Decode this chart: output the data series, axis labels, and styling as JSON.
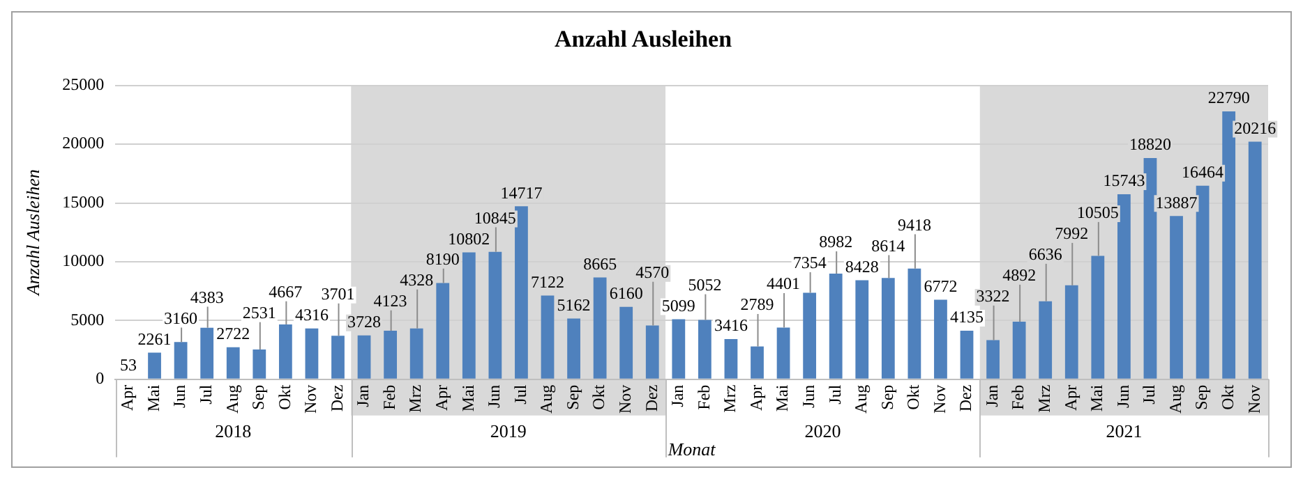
{
  "chart_data": {
    "type": "bar",
    "title": "Anzahl Ausleihen",
    "xlabel": "Monat",
    "ylabel": "Anzahl Ausleihen",
    "x": [
      "2018-04",
      "2018-05",
      "2018-06",
      "2018-07",
      "2018-08",
      "2018-09",
      "2018-10",
      "2018-11",
      "2018-12",
      "2019-01",
      "2019-02",
      "2019-03",
      "2019-04",
      "2019-05",
      "2019-06",
      "2019-07",
      "2019-08",
      "2019-09",
      "2019-10",
      "2019-11",
      "2019-12",
      "2020-01",
      "2020-02",
      "2020-03",
      "2020-04",
      "2020-05",
      "2020-06",
      "2020-07",
      "2020-08",
      "2020-09",
      "2020-10",
      "2020-11",
      "2020-12",
      "2021-01",
      "2021-02",
      "2021-03",
      "2021-04",
      "2021-05",
      "2021-06",
      "2021-07",
      "2021-08",
      "2021-09",
      "2021-10",
      "2021-11"
    ],
    "xticks": [
      {
        "value": "2018-04",
        "label": "Apr"
      },
      {
        "value": "2018-05",
        "label": "Mai"
      },
      {
        "value": "2018-06",
        "label": "Jun"
      },
      {
        "value": "2018-07",
        "label": "Jul"
      },
      {
        "value": "2018-08",
        "label": "Aug"
      },
      {
        "value": "2018-09",
        "label": "Sep"
      },
      {
        "value": "2018-10",
        "label": "Okt"
      },
      {
        "value": "2018-11",
        "label": "Nov"
      },
      {
        "value": "2018-12",
        "label": "Dez"
      },
      {
        "value": "2019-01",
        "label": "Jan"
      },
      {
        "value": "2019-02",
        "label": "Feb"
      },
      {
        "value": "2019-03",
        "label": "Mrz"
      },
      {
        "value": "2019-04",
        "label": "Apr"
      },
      {
        "value": "2019-05",
        "label": "Mai"
      },
      {
        "value": "2019-06",
        "label": "Jun"
      },
      {
        "value": "2019-07",
        "label": "Jul"
      },
      {
        "value": "2019-08",
        "label": "Aug"
      },
      {
        "value": "2019-09",
        "label": "Sep"
      },
      {
        "value": "2019-10",
        "label": "Okt"
      },
      {
        "value": "2019-11",
        "label": "Nov"
      },
      {
        "value": "2019-12",
        "label": "Dez"
      },
      {
        "value": "2020-01",
        "label": "Jan"
      },
      {
        "value": "2020-02",
        "label": "Feb"
      },
      {
        "value": "2020-03",
        "label": "Mrz"
      },
      {
        "value": "2020-04",
        "label": "Apr"
      },
      {
        "value": "2020-05",
        "label": "Mai"
      },
      {
        "value": "2020-06",
        "label": "Jun"
      },
      {
        "value": "2020-07",
        "label": "Jul"
      },
      {
        "value": "2020-08",
        "label": "Aug"
      },
      {
        "value": "2020-09",
        "label": "Sep"
      },
      {
        "value": "2020-10",
        "label": "Okt"
      },
      {
        "value": "2020-11",
        "label": "Nov"
      },
      {
        "value": "2020-12",
        "label": "Dez"
      },
      {
        "value": "2021-01",
        "label": "Jan"
      },
      {
        "value": "2021-02",
        "label": "Feb"
      },
      {
        "value": "2021-03",
        "label": "Mrz"
      },
      {
        "value": "2021-04",
        "label": "Apr"
      },
      {
        "value": "2021-05",
        "label": "Mai"
      },
      {
        "value": "2021-06",
        "label": "Jun"
      },
      {
        "value": "2021-07",
        "label": "Jul"
      },
      {
        "value": "2021-08",
        "label": "Aug"
      },
      {
        "value": "2021-09",
        "label": "Sep"
      },
      {
        "value": "2021-10",
        "label": "Okt"
      },
      {
        "value": "2021-11",
        "label": "Nov"
      }
    ],
    "values": [
      53,
      2261,
      3160,
      4383,
      2722,
      2531,
      4667,
      4316,
      3701,
      3728,
      4123,
      4328,
      8190,
      10802,
      10845,
      14717,
      7122,
      5162,
      8665,
      6160,
      4570,
      5099,
      5052,
      3416,
      2789,
      4401,
      7354,
      8982,
      8428,
      8614,
      9418,
      6772,
      4135,
      3322,
      4892,
      6636,
      7992,
      10505,
      15743,
      18820,
      13887,
      16464,
      22790,
      20216
    ],
    "color": "#4f81bd",
    "ylim": [
      0,
      25000
    ],
    "yticks": [
      0,
      5000,
      10000,
      15000,
      20000,
      25000
    ],
    "grid": "y",
    "legend": false,
    "data_labels": true,
    "xlim": [
      "2018-03-16",
      "2021-11-16"
    ],
    "annotations": [
      "2018",
      "2019",
      "2020",
      "2021"
    ],
    "bands": [
      {
        "axis": "x",
        "from": "2018-12-16",
        "to": "2019-12-16",
        "color": "#d9d9d9"
      },
      {
        "axis": "x",
        "from": "2020-12-16",
        "to": "2021-11-16",
        "color": "#d9d9d9"
      }
    ]
  }
}
